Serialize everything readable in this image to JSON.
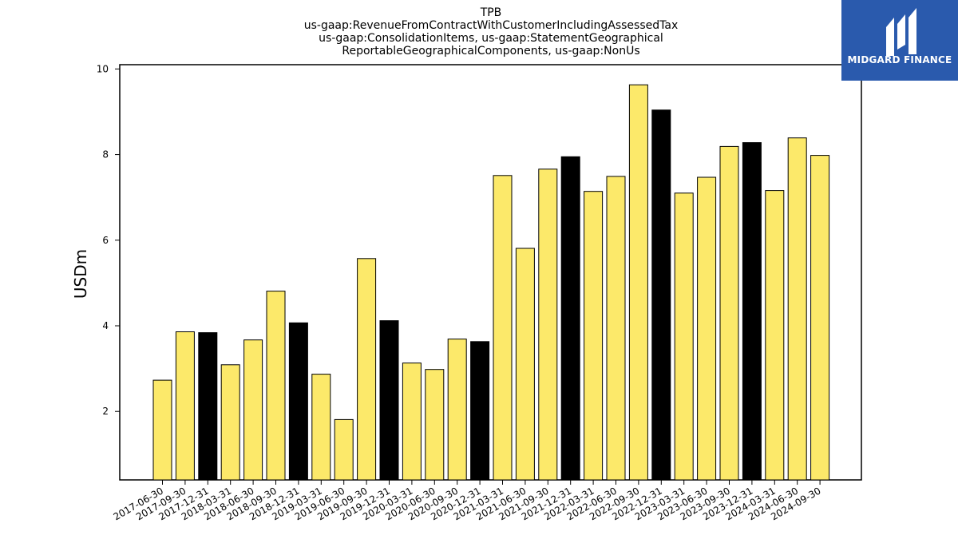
{
  "chart_data": {
    "type": "bar",
    "title_lines": [
      "TPB",
      "us-gaap:RevenueFromContractWithCustomerIncludingAssessedTax",
      "us-gaap:ConsolidationItems, us-gaap:StatementGeographical",
      "ReportableGeographicalComponents, us-gaap:NonUs"
    ],
    "ylabel": "USDm",
    "xlabel": "",
    "ylim": [
      0.4,
      10.1
    ],
    "yticks": [
      2,
      4,
      6,
      8,
      10
    ],
    "grid": false,
    "categories": [
      "2017-06-30",
      "2017-09-30",
      "2017-12-31",
      "2018-03-31",
      "2018-06-30",
      "2018-09-30",
      "2018-12-31",
      "2019-03-31",
      "2019-06-30",
      "2019-09-30",
      "2019-12-31",
      "2020-03-31",
      "2020-06-30",
      "2020-09-30",
      "2020-12-31",
      "2021-03-31",
      "2021-06-30",
      "2021-09-30",
      "2021-12-31",
      "2022-03-31",
      "2022-06-30",
      "2022-09-30",
      "2022-12-31",
      "2023-03-31",
      "2023-06-30",
      "2023-09-30",
      "2023-12-31",
      "2024-03-31",
      "2024-06-30",
      "2024-09-30"
    ],
    "values": [
      2.73,
      3.86,
      3.84,
      3.09,
      3.67,
      4.81,
      4.07,
      2.87,
      1.81,
      5.57,
      4.12,
      3.13,
      2.98,
      3.69,
      3.63,
      7.51,
      5.81,
      7.66,
      7.95,
      7.14,
      7.49,
      9.63,
      9.04,
      7.1,
      7.47,
      8.19,
      8.28,
      7.16,
      8.39,
      7.98
    ],
    "colors": {
      "quarter": "#fce96a",
      "year_end": "#000000",
      "edge": "#000000"
    }
  },
  "logo": {
    "text": "MIDGARD FINANCE",
    "bg": "#2a5aad"
  }
}
